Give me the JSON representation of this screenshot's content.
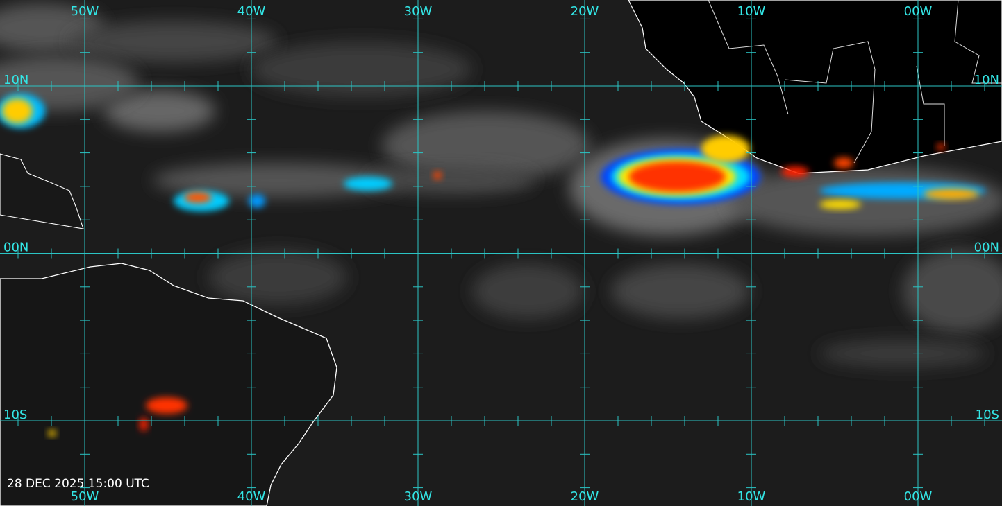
{
  "longitude_labels": [
    "50W",
    "40W",
    "30W",
    "20W",
    "10W",
    "00W"
  ],
  "latitude_labels": [
    "10N",
    "00N",
    "10S"
  ],
  "timestamp": "28 DEC 2025 15:00 UTC"
}
